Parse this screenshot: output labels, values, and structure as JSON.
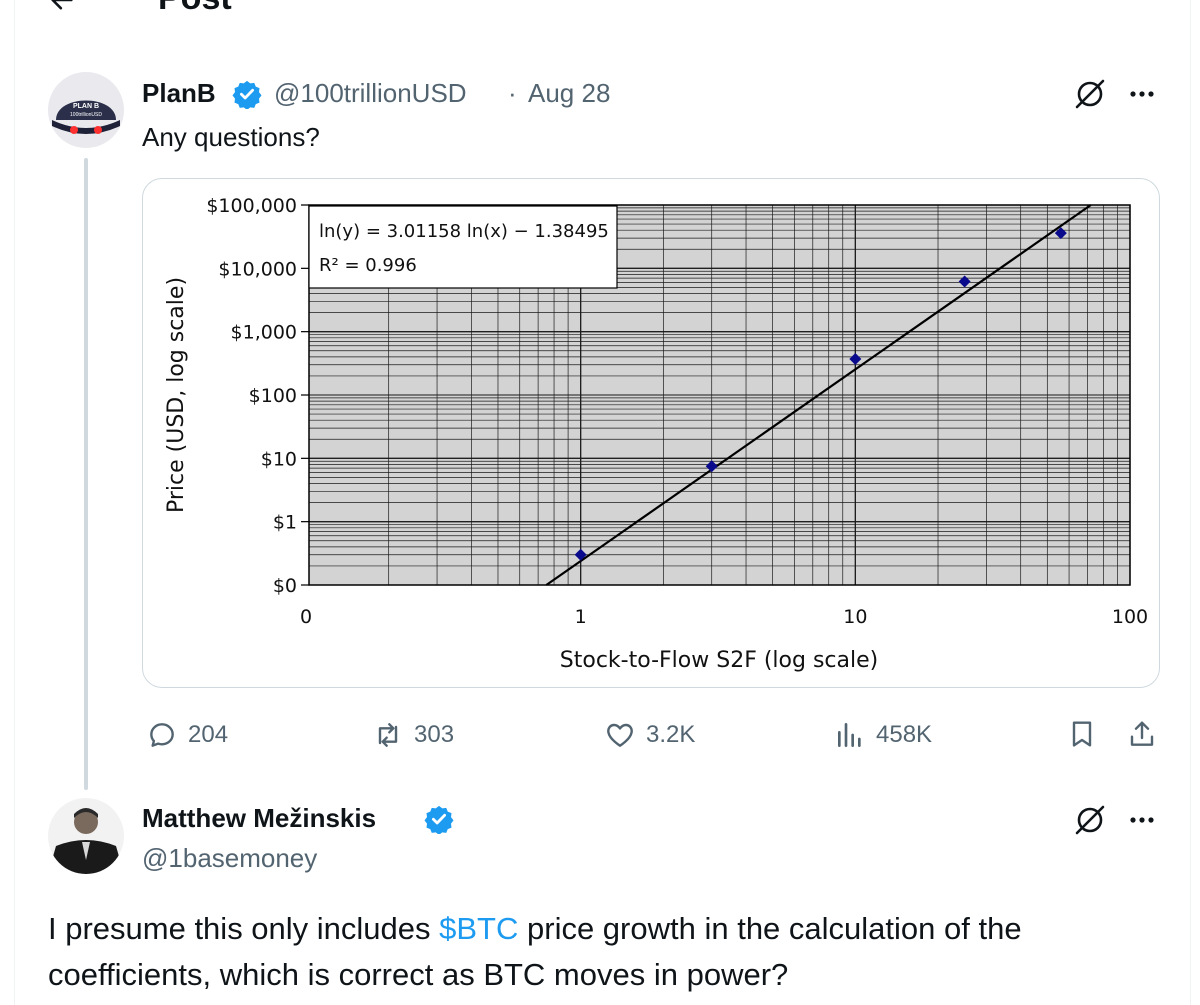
{
  "header": {
    "title": "Post"
  },
  "tweet": {
    "author_name": "PlanB",
    "handle": "@100trillionUSD",
    "separator": "·",
    "date": "Aug 28",
    "text": "Any questions?",
    "avatar_text_1": "PLAN B",
    "avatar_text_2": "100trillionUSD",
    "stats": {
      "replies": "204",
      "reposts": "303",
      "likes": "3.2K",
      "views": "458K"
    }
  },
  "chart_data": {
    "type": "scatter",
    "xlabel": "Stock-to-Flow S2F (log scale)",
    "ylabel": "Price (USD, log scale)",
    "x_scale": "log",
    "y_scale": "log",
    "x_ticks": [
      "0",
      "1",
      "10",
      "100"
    ],
    "y_ticks": [
      "$0",
      "$1",
      "$10",
      "$100",
      "$1,000",
      "$10,000",
      "$100,000"
    ],
    "equation": "ln(y) = 3.01158 ln(x) − 1.38495",
    "r2": "R² = 0.996",
    "points": [
      {
        "x": 1.0,
        "y": 0.3
      },
      {
        "x": 3.0,
        "y": 7.5
      },
      {
        "x": 10.0,
        "y": 370
      },
      {
        "x": 25.0,
        "y": 6200
      },
      {
        "x": 56.0,
        "y": 36000
      }
    ],
    "fit_line": {
      "x": [
        0.75,
        72
      ],
      "y": [
        0.1,
        100000
      ]
    },
    "grid": true,
    "colors": {
      "plot_background": "#d3d3d3",
      "points": "#0a0a8c",
      "line": "#000000"
    }
  },
  "reply": {
    "author_name": "Matthew Mežinskis",
    "handle": "@1basemoney",
    "text_before": "I presume this only includes ",
    "cashtag": "$BTC",
    "text_after": " price growth in the calculation of the coefficients, which is correct as BTC moves in power?"
  },
  "colors": {
    "accent": "#1d9bf0",
    "muted": "#536471",
    "border": "#cfd9de"
  }
}
